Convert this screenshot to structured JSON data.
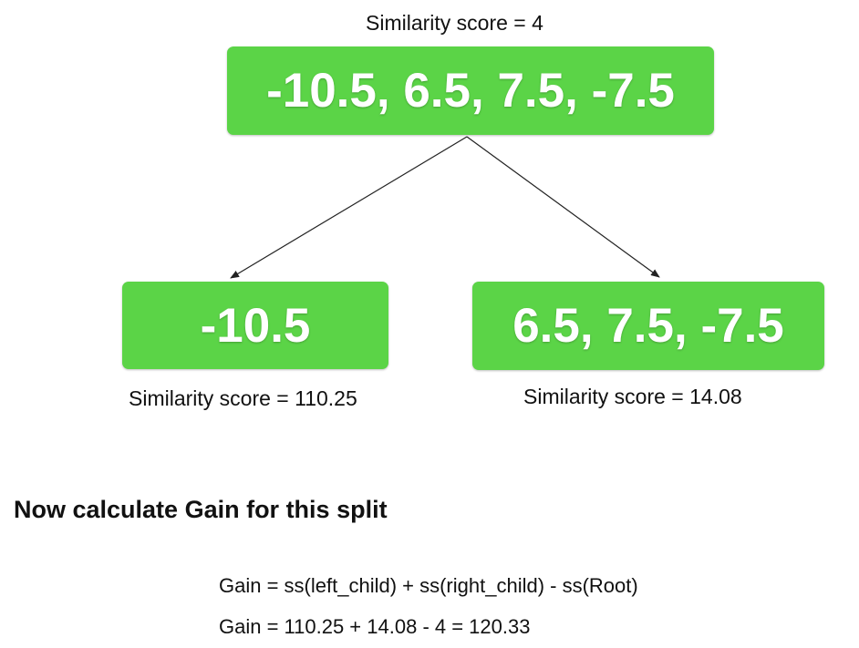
{
  "tree": {
    "root": {
      "values": "-10.5, 6.5, 7.5, -7.5",
      "caption": "Similarity score = 4"
    },
    "left_child": {
      "values": "-10.5",
      "caption": "Similarity score = 110.25"
    },
    "right_child": {
      "values": "6.5, 7.5, -7.5",
      "caption": "Similarity score = 14.08"
    },
    "node_color": "#5bd447",
    "edge_color": "#222222"
  },
  "gain": {
    "heading": "Now calculate Gain for this split",
    "formula": "Gain = ss(left_child) + ss(right_child) - ss(Root)",
    "calculation": "Gain = 110.25 + 14.08 - 4 = 120.33"
  }
}
